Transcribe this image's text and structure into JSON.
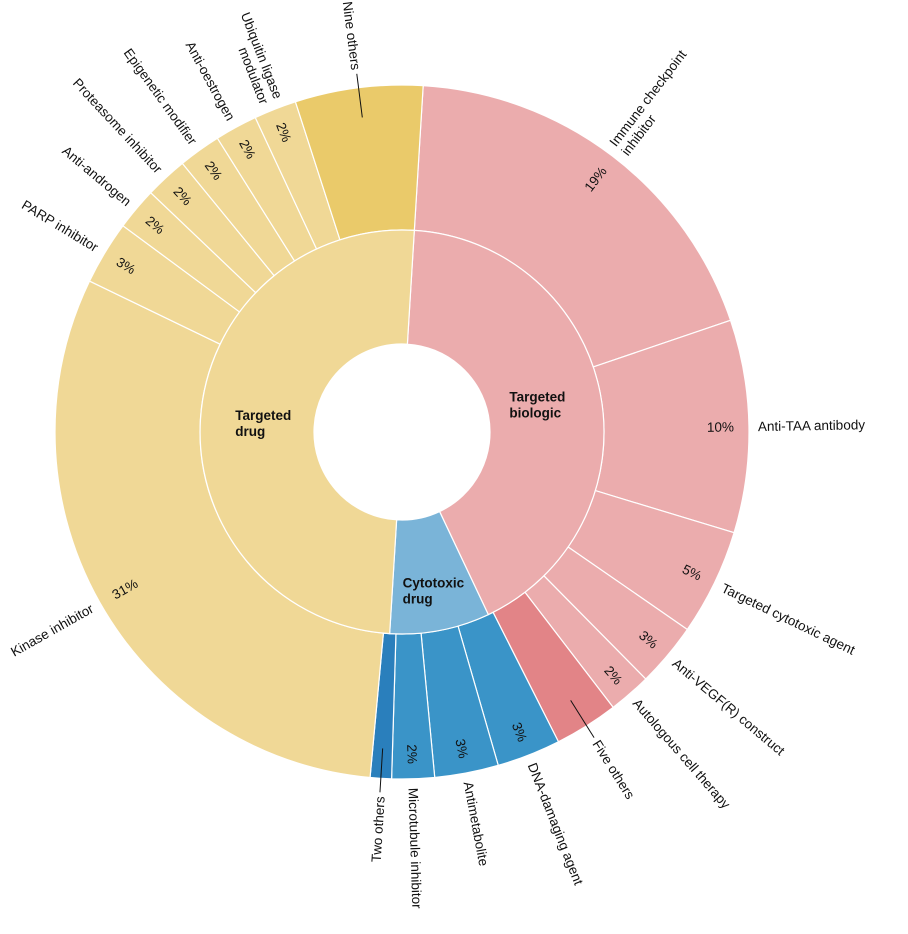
{
  "chart_data": {
    "type": "sunburst",
    "inner": [
      {
        "label": "Targeted drug",
        "lines": [
          "Targeted",
          "drug"
        ],
        "share": 50,
        "color": "#f0d896"
      },
      {
        "label": "Targeted biologic",
        "lines": [
          "Targeted",
          "biologic"
        ],
        "share": 42,
        "color": "#ebacad"
      },
      {
        "label": "Cytotoxic drug",
        "lines": [
          "Cytotoxic",
          "drug"
        ],
        "share": 8,
        "color": "#7ab4d8"
      }
    ],
    "outer": [
      {
        "label": "Immune checkpoint inhibitor",
        "lines": [
          "Immune checkpoint",
          "inhibitor"
        ],
        "parent": "Targeted biologic",
        "share": 19,
        "pct": "19%",
        "color": "#ebacad"
      },
      {
        "label": "Anti-TAA antibody",
        "lines": [
          "Anti-TAA antibody"
        ],
        "parent": "Targeted biologic",
        "share": 10,
        "pct": "10%",
        "color": "#ebacad"
      },
      {
        "label": "Targeted cytotoxic agent",
        "lines": [
          "Targeted cytotoxic agent"
        ],
        "parent": "Targeted biologic",
        "share": 5,
        "pct": "5%",
        "color": "#ebacad"
      },
      {
        "label": "Anti-VEGF(R) construct",
        "lines": [
          "Anti-VEGF(R) construct"
        ],
        "parent": "Targeted biologic",
        "share": 3,
        "pct": "3%",
        "color": "#ebacad"
      },
      {
        "label": "Autologous cell therapy",
        "lines": [
          "Autologous cell therapy"
        ],
        "parent": "Targeted biologic",
        "share": 2,
        "pct": "2%",
        "color": "#ebacad"
      },
      {
        "label": "Five others",
        "lines": [
          "Five others"
        ],
        "parent": "Targeted biologic",
        "share": 3,
        "pct": "",
        "color": "#e28487"
      },
      {
        "label": "DNA-damaging agent",
        "lines": [
          "DNA-damaging agent"
        ],
        "parent": "Cytotoxic drug",
        "share": 3,
        "pct": "3%",
        "color": "#3a94c8"
      },
      {
        "label": "Antimetabolite",
        "lines": [
          "Antimetabolite"
        ],
        "parent": "Cytotoxic drug",
        "share": 3,
        "pct": "3%",
        "color": "#3a94c8"
      },
      {
        "label": "Microtubule inhibitor",
        "lines": [
          "Microtubule inhibitor"
        ],
        "parent": "Cytotoxic drug",
        "share": 2,
        "pct": "2%",
        "color": "#3a94c8"
      },
      {
        "label": "Two others",
        "lines": [
          "Two others"
        ],
        "parent": "Cytotoxic drug",
        "share": 1,
        "pct": "",
        "color": "#2a7fbc"
      },
      {
        "label": "Kinase inhibitor",
        "lines": [
          "Kinase inhibitor"
        ],
        "parent": "Targeted drug",
        "share": 31,
        "pct": "31%",
        "color": "#f0d896"
      },
      {
        "label": "PARP inhibitor",
        "lines": [
          "PARP inhibitor"
        ],
        "parent": "Targeted drug",
        "share": 3,
        "pct": "3%",
        "color": "#f0d896"
      },
      {
        "label": "Anti-androgen",
        "lines": [
          "Anti-androgen"
        ],
        "parent": "Targeted drug",
        "share": 2,
        "pct": "2%",
        "color": "#f0d896"
      },
      {
        "label": "Proteasome inhibitor",
        "lines": [
          "Proteasome inhibitor"
        ],
        "parent": "Targeted drug",
        "share": 2,
        "pct": "2%",
        "color": "#f0d896"
      },
      {
        "label": "Epigenetic modifier",
        "lines": [
          "Epigenetic modifier"
        ],
        "parent": "Targeted drug",
        "share": 2,
        "pct": "2%",
        "color": "#f0d896"
      },
      {
        "label": "Anti-oestrogen",
        "lines": [
          "Anti-oestrogen"
        ],
        "parent": "Targeted drug",
        "share": 2,
        "pct": "2%",
        "color": "#f0d896"
      },
      {
        "label": "Ubiquitin ligase modulator",
        "lines": [
          "Ubiquitin ligase",
          "modulator"
        ],
        "parent": "Targeted drug",
        "share": 2,
        "pct": "2%",
        "color": "#f0d896"
      },
      {
        "label": "Nine others",
        "lines": [
          "Nine others"
        ],
        "parent": "Targeted drug",
        "share": 6,
        "pct": "",
        "color": "#eaca6a"
      }
    ]
  }
}
